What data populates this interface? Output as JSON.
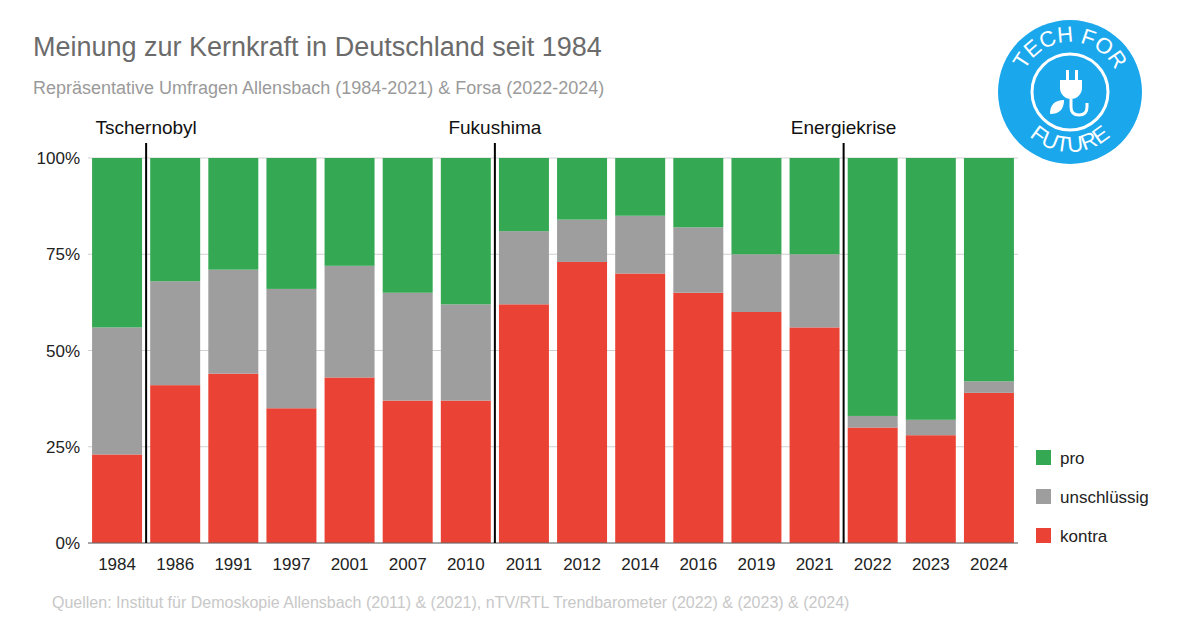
{
  "chart_data": {
    "type": "bar",
    "stacked": true,
    "grid": true,
    "legend": "right",
    "data_labels": false,
    "title": "Meinung zur Kernkraft in Deutschland seit 1984",
    "subtitle": "Repräsentative Umfragen Allensbach (1984-2021) & Forsa (2022-2024)",
    "source": "Quellen: Institut für Demoskopie Allensbach (2011) & (2021),  nTV/RTL Trendbarometer (2022) & (2023) & (2024)",
    "logo": {
      "top": "TECH FOR",
      "bottom": "FUTURE"
    },
    "categories": [
      "1984",
      "1986",
      "1991",
      "1997",
      "2001",
      "2007",
      "2010",
      "2011",
      "2012",
      "2014",
      "2016",
      "2019",
      "2021",
      "2022",
      "2023",
      "2024"
    ],
    "annotations": [
      {
        "text": "Tschernobyl",
        "after": "1984"
      },
      {
        "text": "Fukushima",
        "after": "2010"
      },
      {
        "text": "Energiekrise",
        "after": "2021"
      }
    ],
    "ylim": [
      0,
      100
    ],
    "yticks": [
      {
        "value": 0,
        "label": "0%"
      },
      {
        "value": 25,
        "label": "25%"
      },
      {
        "value": 50,
        "label": "50%"
      },
      {
        "value": 75,
        "label": "75%"
      },
      {
        "value": 100,
        "label": "100%"
      }
    ],
    "series": [
      {
        "name": "kontra",
        "color": "#ea4335",
        "values": [
          23,
          41,
          44,
          35,
          43,
          37,
          37,
          62,
          73,
          70,
          65,
          60,
          56,
          30,
          28,
          39
        ]
      },
      {
        "name": "unschlüssig",
        "color": "#9e9e9e",
        "values": [
          33,
          27,
          27,
          31,
          29,
          28,
          25,
          19,
          11,
          15,
          17,
          15,
          19,
          3,
          4,
          3
        ]
      },
      {
        "name": "pro",
        "color": "#34a853",
        "values": [
          44,
          32,
          29,
          34,
          28,
          35,
          38,
          19,
          16,
          15,
          18,
          25,
          25,
          67,
          68,
          58
        ]
      }
    ]
  }
}
